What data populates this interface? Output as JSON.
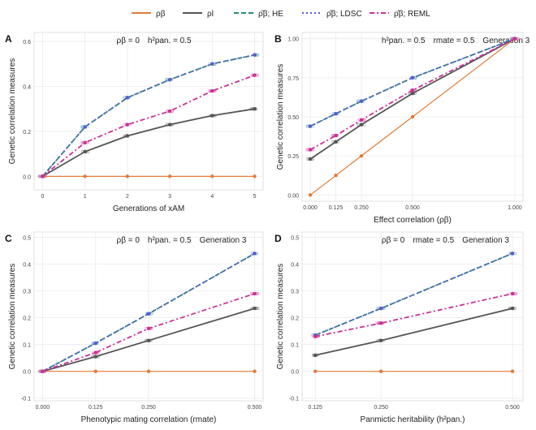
{
  "legend": {
    "position": "top",
    "items": [
      {
        "key": "rho_beta",
        "label": "ρβ",
        "color": "#e07b39",
        "dash": "solid"
      },
      {
        "key": "rho_l",
        "label": "ρl",
        "color": "#555555",
        "dash": "solid"
      },
      {
        "key": "he",
        "label": "ρ̂β; HE",
        "color": "#2a8a78",
        "dash": "dashed"
      },
      {
        "key": "ldsc",
        "label": "ρ̂β; LDSC",
        "color": "#5b5bd6",
        "dash": "dotted"
      },
      {
        "key": "reml",
        "label": "ρ̂β; REML",
        "color": "#cc2f96",
        "dash": "dotdash"
      }
    ]
  },
  "chart_data": [
    {
      "panel": "A",
      "type": "line",
      "annotation": [
        "ρβ = 0",
        "h²pan. = 0.5"
      ],
      "xlabel": "Generations of xAM",
      "ylabel": "Genetic correlation measures",
      "xlim": [
        -0.2,
        5.2
      ],
      "ylim": [
        -0.06,
        0.64
      ],
      "x_scale": "linear",
      "x_ticks": [
        0,
        1,
        2,
        3,
        4,
        5
      ],
      "x_tick_labels": [
        "0",
        "1",
        "2",
        "3",
        "4",
        "5"
      ],
      "y_ticks": [
        0.0,
        0.2,
        0.4,
        0.6
      ],
      "y_tick_labels": [
        "0.0",
        "0.2",
        "0.4",
        "0.6"
      ],
      "x": [
        0,
        1,
        2,
        3,
        4,
        5
      ],
      "grid": true,
      "series": [
        {
          "key": "rho_beta",
          "values": [
            0,
            0,
            0,
            0,
            0,
            0
          ]
        },
        {
          "key": "rho_l",
          "values": [
            0,
            0.11,
            0.18,
            0.23,
            0.27,
            0.3
          ]
        },
        {
          "key": "he",
          "values": [
            0,
            0.22,
            0.35,
            0.43,
            0.5,
            0.54
          ]
        },
        {
          "key": "ldsc",
          "values": [
            0,
            0.22,
            0.35,
            0.43,
            0.5,
            0.54
          ]
        },
        {
          "key": "reml",
          "values": [
            0,
            0.15,
            0.23,
            0.29,
            0.38,
            0.45
          ]
        }
      ]
    },
    {
      "panel": "B",
      "type": "line",
      "annotation": [
        "h²pan. = 0.5",
        "rmate = 0.5",
        "Generation 3"
      ],
      "xlabel": "Effect correlation (ρβ)",
      "ylabel": "Genetic correlation measures",
      "xlim": [
        -0.04,
        1.04
      ],
      "ylim": [
        -0.04,
        1.04
      ],
      "x_scale": "linear",
      "x_ticks": [
        0,
        0.125,
        0.25,
        0.5,
        1.0
      ],
      "x_tick_labels": [
        "0.000",
        "0.125",
        "0.250",
        "0.500",
        "1.000"
      ],
      "y_ticks": [
        0.0,
        0.25,
        0.5,
        0.75,
        1.0
      ],
      "y_tick_labels": [
        "0.00",
        "0.25",
        "0.50",
        "0.75",
        "1.00"
      ],
      "x": [
        0,
        0.125,
        0.25,
        0.5,
        1.0
      ],
      "grid": true,
      "series": [
        {
          "key": "rho_beta",
          "values": [
            0,
            0.125,
            0.25,
            0.5,
            1.0
          ]
        },
        {
          "key": "rho_l",
          "values": [
            0.23,
            0.34,
            0.45,
            0.65,
            1.0
          ]
        },
        {
          "key": "he",
          "values": [
            0.44,
            0.52,
            0.6,
            0.75,
            1.0
          ]
        },
        {
          "key": "ldsc",
          "values": [
            0.44,
            0.52,
            0.6,
            0.75,
            1.0
          ]
        },
        {
          "key": "reml",
          "values": [
            0.29,
            0.38,
            0.48,
            0.67,
            1.0
          ]
        }
      ]
    },
    {
      "panel": "C",
      "type": "line",
      "annotation": [
        "ρβ = 0",
        "h²pan. = 0.5",
        "Generation 3"
      ],
      "xlabel": "Phenotypic mating correlation (rmate)",
      "ylabel": "Genetic correlation measures",
      "xlim": [
        -0.02,
        0.52
      ],
      "ylim": [
        -0.11,
        0.52
      ],
      "x_scale": "linear",
      "x_ticks": [
        0,
        0.125,
        0.25,
        0.5
      ],
      "x_tick_labels": [
        "0.000",
        "0.125",
        "0.250",
        "0.500"
      ],
      "y_ticks": [
        -0.1,
        0.0,
        0.1,
        0.2,
        0.3,
        0.4,
        0.5
      ],
      "y_tick_labels": [
        "-0.1",
        "0.0",
        "0.1",
        "0.2",
        "0.3",
        "0.4",
        "0.5"
      ],
      "x": [
        0,
        0.125,
        0.25,
        0.5
      ],
      "grid": true,
      "series": [
        {
          "key": "rho_beta",
          "values": [
            0,
            0,
            0,
            0
          ]
        },
        {
          "key": "rho_l",
          "values": [
            0,
            0.055,
            0.115,
            0.235
          ]
        },
        {
          "key": "he",
          "values": [
            0,
            0.105,
            0.215,
            0.44
          ]
        },
        {
          "key": "ldsc",
          "values": [
            0,
            0.105,
            0.215,
            0.44
          ]
        },
        {
          "key": "reml",
          "values": [
            0,
            0.07,
            0.16,
            0.29
          ]
        }
      ]
    },
    {
      "panel": "D",
      "type": "line",
      "annotation": [
        "ρβ = 0",
        "rmate = 0.5",
        "Generation 3"
      ],
      "xlabel": "Panmictic heritability (h²pan.)",
      "ylabel": "Genetic correlation measures",
      "xlim": [
        0.1,
        0.52
      ],
      "ylim": [
        -0.11,
        0.52
      ],
      "x_scale": "linear",
      "x_ticks": [
        0.125,
        0.25,
        0.5
      ],
      "x_tick_labels": [
        "0.125",
        "0.250",
        "0.500"
      ],
      "y_ticks": [
        -0.1,
        0.0,
        0.1,
        0.2,
        0.3,
        0.4,
        0.5
      ],
      "y_tick_labels": [
        "-0.1",
        "0.0",
        "0.1",
        "0.2",
        "0.3",
        "0.4",
        "0.5"
      ],
      "x": [
        0.125,
        0.25,
        0.5
      ],
      "grid": true,
      "series": [
        {
          "key": "rho_beta",
          "values": [
            0,
            0,
            0
          ]
        },
        {
          "key": "rho_l",
          "values": [
            0.06,
            0.115,
            0.235
          ]
        },
        {
          "key": "he",
          "values": [
            0.135,
            0.235,
            0.44
          ]
        },
        {
          "key": "ldsc",
          "values": [
            0.135,
            0.235,
            0.44
          ]
        },
        {
          "key": "reml",
          "values": [
            0.13,
            0.18,
            0.29
          ]
        }
      ]
    }
  ]
}
